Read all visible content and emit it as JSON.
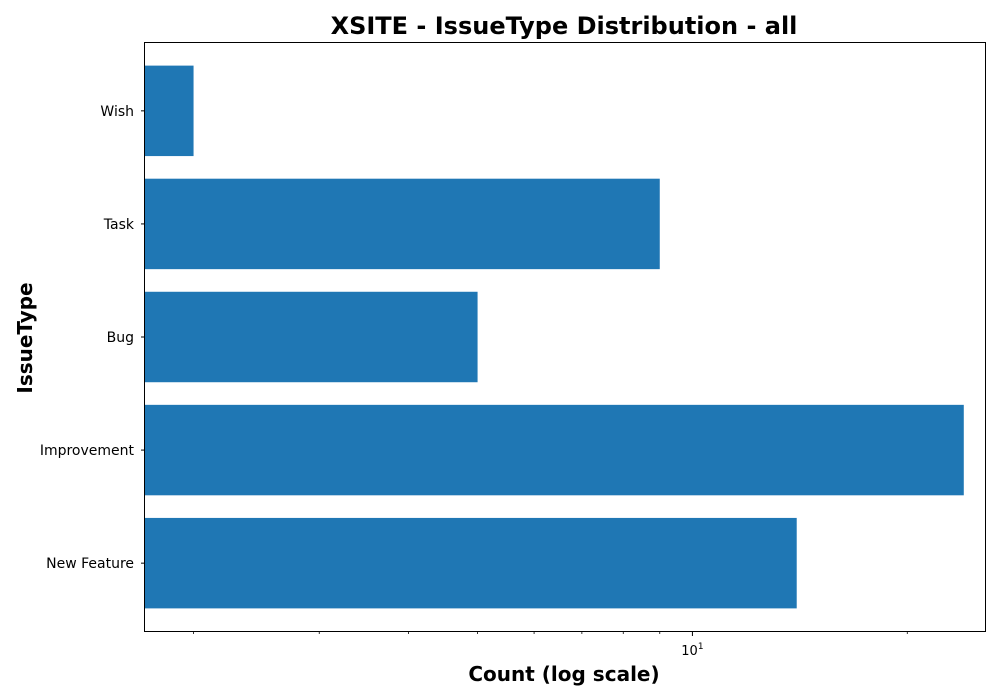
{
  "chart_data": {
    "type": "bar",
    "orientation": "horizontal",
    "title": "XSITE - IssueType Distribution - all",
    "xlabel": "Count (log scale)",
    "ylabel": "IssueType",
    "xscale": "log",
    "xlim": [
      1.71,
      25.7
    ],
    "categories": [
      "New Feature",
      "Improvement",
      "Bug",
      "Task",
      "Wish"
    ],
    "values": [
      14,
      24,
      5,
      9,
      2
    ],
    "x_major_ticks": [
      10
    ],
    "x_major_tick_label": {
      "base": "10",
      "exponent": "1"
    },
    "x_minor_ticks": [
      2,
      3,
      4,
      5,
      6,
      7,
      8,
      9,
      20
    ],
    "bar_color": "#1f77b4",
    "grid": false
  }
}
